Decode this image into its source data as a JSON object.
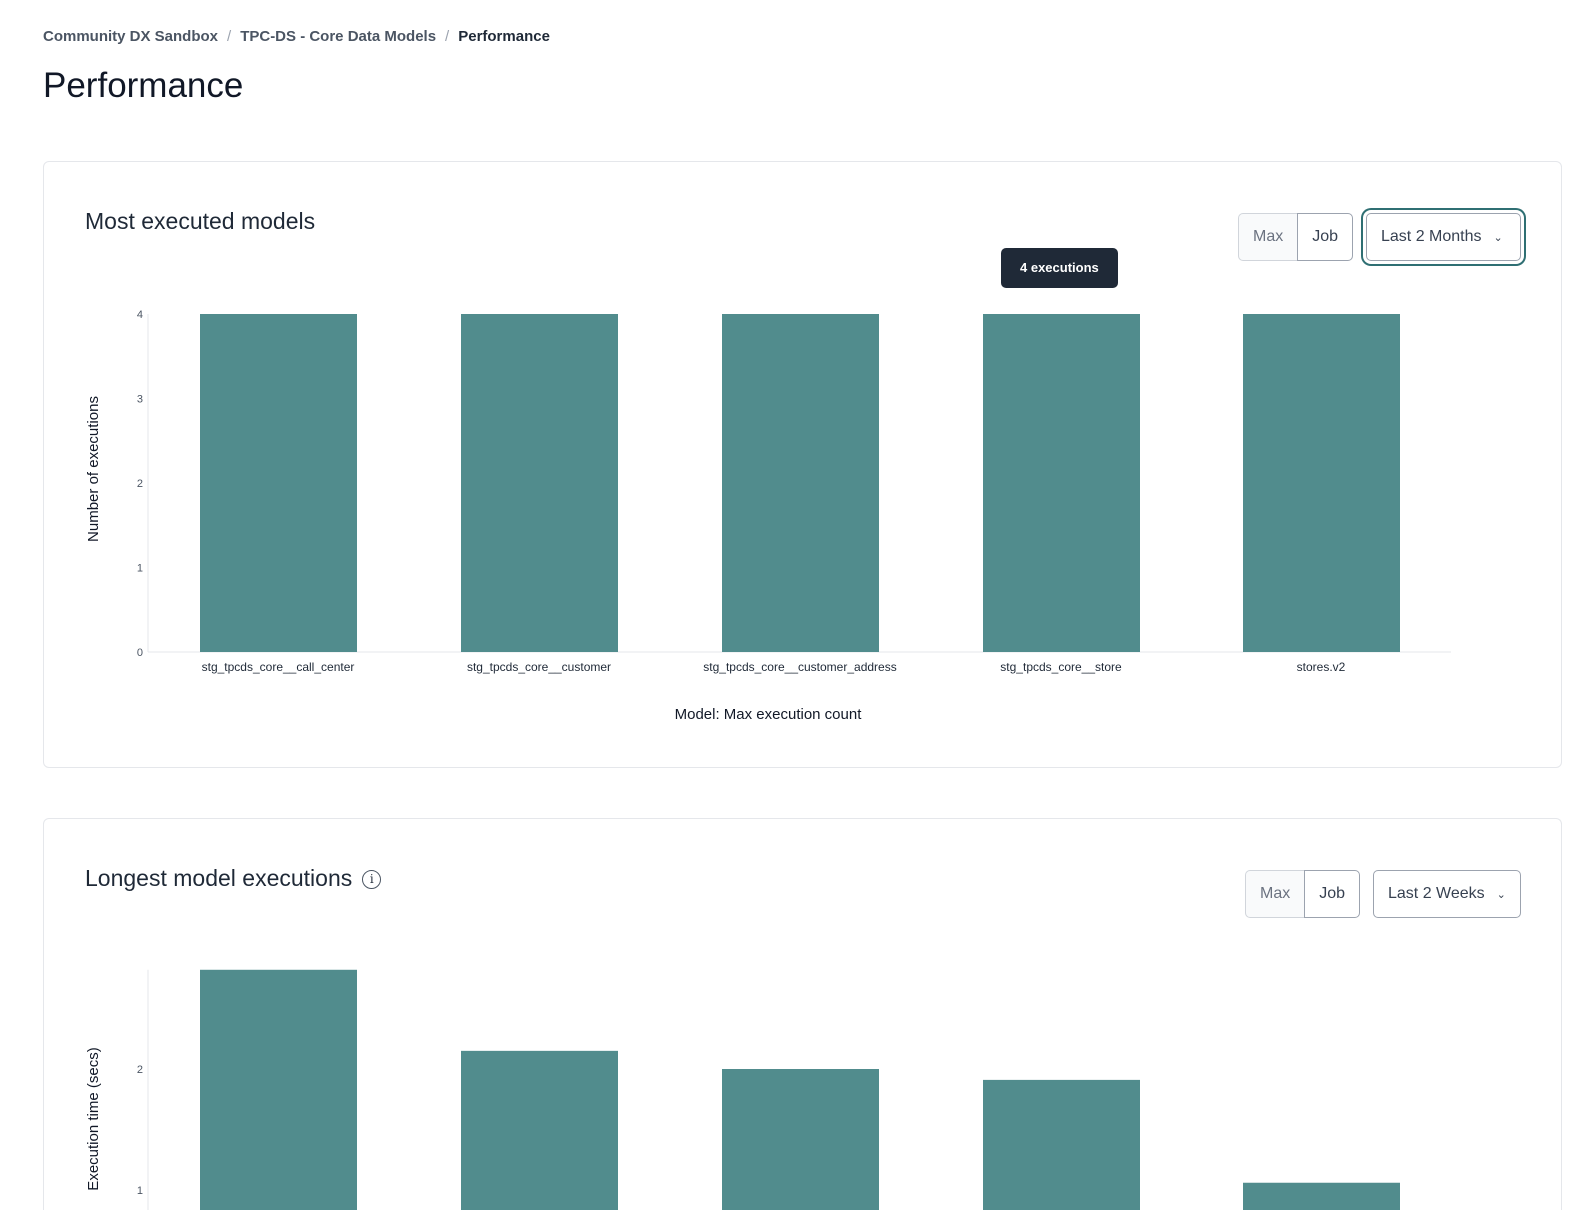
{
  "breadcrumb": [
    "Community DX Sandbox",
    "TPC-DS - Core Data Models",
    "Performance"
  ],
  "page_title": "Performance",
  "colors": {
    "bar": "#518c8d",
    "focus": "#2f6f73",
    "tooltip_bg": "#1f2937"
  },
  "cards": [
    {
      "title": "Most executed models",
      "toggle": {
        "max_label": "Max",
        "job_label": "Job",
        "selected": "Job"
      },
      "range": "Last 2 Months",
      "tooltip": "4 executions",
      "chart_data": {
        "type": "bar",
        "categories": [
          "stg_tpcds_core__call_center",
          "stg_tpcds_core__customer",
          "stg_tpcds_core__customer_address",
          "stg_tpcds_core__store",
          "stores.v2"
        ],
        "values": [
          4,
          4,
          4,
          4,
          4
        ],
        "ylabel": "Number of executions",
        "xlabel": "Model: Max execution count",
        "yticks": [
          0,
          1,
          2,
          3,
          4
        ],
        "ylim": [
          0,
          4
        ],
        "grid": false
      }
    },
    {
      "title": "Longest model executions",
      "info_icon": "info-icon",
      "toggle": {
        "max_label": "Max",
        "job_label": "Job",
        "selected": "Job"
      },
      "range": "Last 2 Weeks",
      "chart_data": {
        "type": "bar",
        "values": [
          2.82,
          2.15,
          2.0,
          1.91,
          1.06
        ],
        "ylabel": "Execution time (secs)",
        "yticks": [
          1,
          2
        ],
        "ylim": [
          0,
          2.82
        ],
        "grid": false
      }
    }
  ]
}
